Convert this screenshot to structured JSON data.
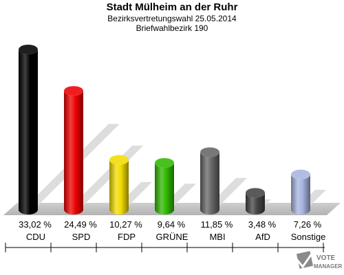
{
  "header": {
    "title": "Stadt Mülheim an der Ruhr",
    "subtitle": "Bezirksvertretungswahl 25.05.2014",
    "district": "Briefwahlbezirk 190"
  },
  "chart_data": {
    "type": "bar",
    "categories": [
      "CDU",
      "SPD",
      "FDP",
      "GRÜNE",
      "MBI",
      "AfD",
      "Sonstige"
    ],
    "values": [
      33.02,
      24.49,
      10.27,
      9.64,
      11.85,
      3.48,
      7.26
    ],
    "labels": [
      "33,02 %",
      "24,49 %",
      "10,27 %",
      "9,64 %",
      "11,85 %",
      "3,48 %",
      "7,26 %"
    ],
    "colors": [
      "#000000",
      "#ee0000",
      "#f2dc00",
      "#2fb800",
      "#666666",
      "#444444",
      "#a7b4e0"
    ],
    "ylim": [
      0,
      33.02
    ],
    "grid": false,
    "legend": "none"
  },
  "logo": {
    "line1": "VOTE",
    "line2": "MANAGER",
    "icon": "check-ballot-icon"
  }
}
